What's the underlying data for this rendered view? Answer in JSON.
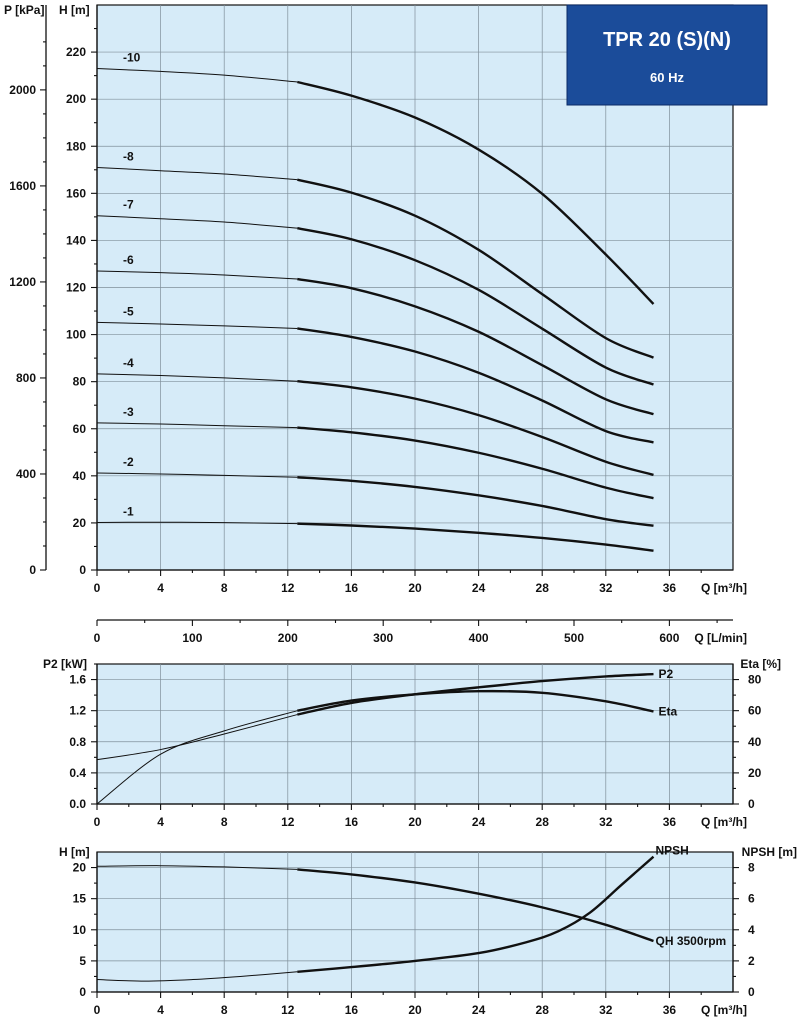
{
  "title": {
    "main": "TPR 20 (S)(N)",
    "sub": "60 Hz"
  },
  "chart_data": [
    {
      "type": "line",
      "name": "head-curves",
      "xlabel": "Q [m³/h]",
      "ylabel_left": "H [m]",
      "ylabel_outer": "P [kPa]",
      "xlim": [
        0,
        40
      ],
      "ylim": [
        0,
        240
      ],
      "xticks": [
        0,
        4,
        8,
        12,
        16,
        20,
        24,
        28,
        32,
        36
      ],
      "yticks": [
        0,
        20,
        40,
        60,
        80,
        100,
        120,
        140,
        160,
        180,
        200,
        220
      ],
      "kpa_ticks": [
        0,
        400,
        800,
        1200,
        1600,
        2000
      ],
      "grid": true,
      "thin_until_x": 12.6,
      "series": [
        {
          "name": "-1",
          "x": [
            0,
            4,
            8,
            12.6,
            16,
            20,
            24,
            28,
            32,
            35
          ],
          "y": [
            20.2,
            20.3,
            20.1,
            19.7,
            18.9,
            17.6,
            15.8,
            13.6,
            10.8,
            8.2
          ]
        },
        {
          "name": "-2",
          "x": [
            0,
            4,
            8,
            12.6,
            16,
            20,
            24,
            28,
            32,
            35
          ],
          "y": [
            41.2,
            40.8,
            40.2,
            39.4,
            37.9,
            35.3,
            31.7,
            27.2,
            21.6,
            18.8
          ]
        },
        {
          "name": "-3",
          "x": [
            0,
            4,
            8,
            12.6,
            16,
            20,
            24,
            28,
            32,
            35
          ],
          "y": [
            62.5,
            62,
            61.3,
            60.5,
            58.5,
            55,
            49.8,
            43,
            35,
            30.5
          ]
        },
        {
          "name": "-4",
          "x": [
            0,
            4,
            8,
            12.6,
            16,
            20,
            24,
            28,
            32,
            35
          ],
          "y": [
            83.3,
            82.6,
            81.6,
            80.2,
            77.6,
            72.8,
            65.8,
            56.5,
            46,
            40.4
          ]
        },
        {
          "name": "-5",
          "x": [
            0,
            4,
            8,
            12.6,
            16,
            20,
            24,
            28,
            32,
            35
          ],
          "y": [
            105.2,
            104.5,
            103.7,
            102.6,
            99,
            92.8,
            83.8,
            72,
            59,
            54.2
          ]
        },
        {
          "name": "-6",
          "x": [
            0,
            4,
            8,
            12.6,
            16,
            20,
            24,
            28,
            32,
            35
          ],
          "y": [
            127,
            126.3,
            125.3,
            123.6,
            119.7,
            112,
            101.2,
            87,
            72.5,
            66.2
          ]
        },
        {
          "name": "-7",
          "x": [
            0,
            4,
            8,
            12.6,
            16,
            20,
            24,
            28,
            32,
            35
          ],
          "y": [
            150.5,
            149.2,
            147.8,
            145.2,
            140.5,
            131.6,
            119,
            102.5,
            86,
            78.8
          ]
        },
        {
          "name": "-8",
          "x": [
            0,
            4,
            8,
            12.6,
            16,
            20,
            24,
            28,
            32,
            35
          ],
          "y": [
            171,
            169.6,
            168.2,
            165.8,
            160.3,
            150.5,
            136,
            117.2,
            98.5,
            90.2
          ]
        },
        {
          "name": "-10",
          "x": [
            0,
            4,
            8,
            12.6,
            16,
            20,
            24,
            28,
            32,
            35
          ],
          "y": [
            213,
            211.8,
            210.2,
            207.3,
            201.5,
            192.2,
            178.6,
            159.8,
            134,
            113
          ]
        }
      ],
      "secondary_xaxis": {
        "label": "Q [L/min]",
        "unit_per_m3h": 16.6667,
        "ticks": [
          0,
          100,
          200,
          300,
          400,
          500,
          600
        ]
      }
    },
    {
      "type": "line",
      "name": "power-efficiency",
      "xlabel": "Q [m³/h]",
      "ylabel_left": "P2 [kW]",
      "ylabel_right": "Eta [%]",
      "xlim": [
        0,
        40
      ],
      "ylim": [
        0,
        1.8
      ],
      "ylim_right": [
        0,
        90
      ],
      "xticks": [
        0,
        4,
        8,
        12,
        16,
        20,
        24,
        28,
        32,
        36
      ],
      "yticks": [
        0.0,
        0.4,
        0.8,
        1.2,
        1.6
      ],
      "yticks_right": [
        0,
        20,
        40,
        60,
        80
      ],
      "grid": true,
      "thin_until_x": 12.6,
      "series": [
        {
          "name": "P2",
          "axis": "left",
          "x": [
            0,
            4,
            8,
            12.6,
            16,
            20,
            24,
            28,
            32,
            35
          ],
          "y": [
            0.57,
            0.7,
            0.9,
            1.15,
            1.3,
            1.41,
            1.5,
            1.58,
            1.64,
            1.67
          ]
        },
        {
          "name": "Eta",
          "axis": "right",
          "x": [
            0,
            4,
            8,
            12.6,
            16,
            20,
            24,
            28,
            32,
            35
          ],
          "y": [
            0,
            32,
            47,
            60,
            66.5,
            70.5,
            72.5,
            71.5,
            66,
            59.5
          ]
        }
      ]
    },
    {
      "type": "line",
      "name": "npsh",
      "xlabel": "Q [m³/h]",
      "ylabel_left": "H [m]",
      "ylabel_right": "NPSH [m]",
      "xlim": [
        0,
        40
      ],
      "ylim": [
        0,
        22.5
      ],
      "ylim_right": [
        0,
        9
      ],
      "xticks": [
        0,
        4,
        8,
        12,
        16,
        20,
        24,
        28,
        32,
        36
      ],
      "yticks": [
        0,
        5,
        10,
        15,
        20
      ],
      "yticks_right": [
        0,
        2,
        4,
        6,
        8
      ],
      "grid": true,
      "thin_until_x": 12.6,
      "series": [
        {
          "name": "QH 3500rpm",
          "axis": "left",
          "x": [
            0,
            4,
            8,
            12.6,
            16,
            20,
            24,
            28,
            32,
            35
          ],
          "y": [
            20.2,
            20.3,
            20.1,
            19.7,
            18.9,
            17.6,
            15.8,
            13.6,
            10.8,
            8.2
          ]
        },
        {
          "name": "NPSH",
          "axis": "right",
          "x": [
            0,
            3,
            6,
            9,
            12.6,
            16,
            20,
            24,
            27,
            29,
            31,
            33,
            35
          ],
          "y": [
            0.8,
            0.7,
            0.8,
            1.0,
            1.3,
            1.6,
            2.0,
            2.5,
            3.2,
            3.9,
            5.1,
            6.9,
            8.7
          ]
        }
      ]
    }
  ]
}
